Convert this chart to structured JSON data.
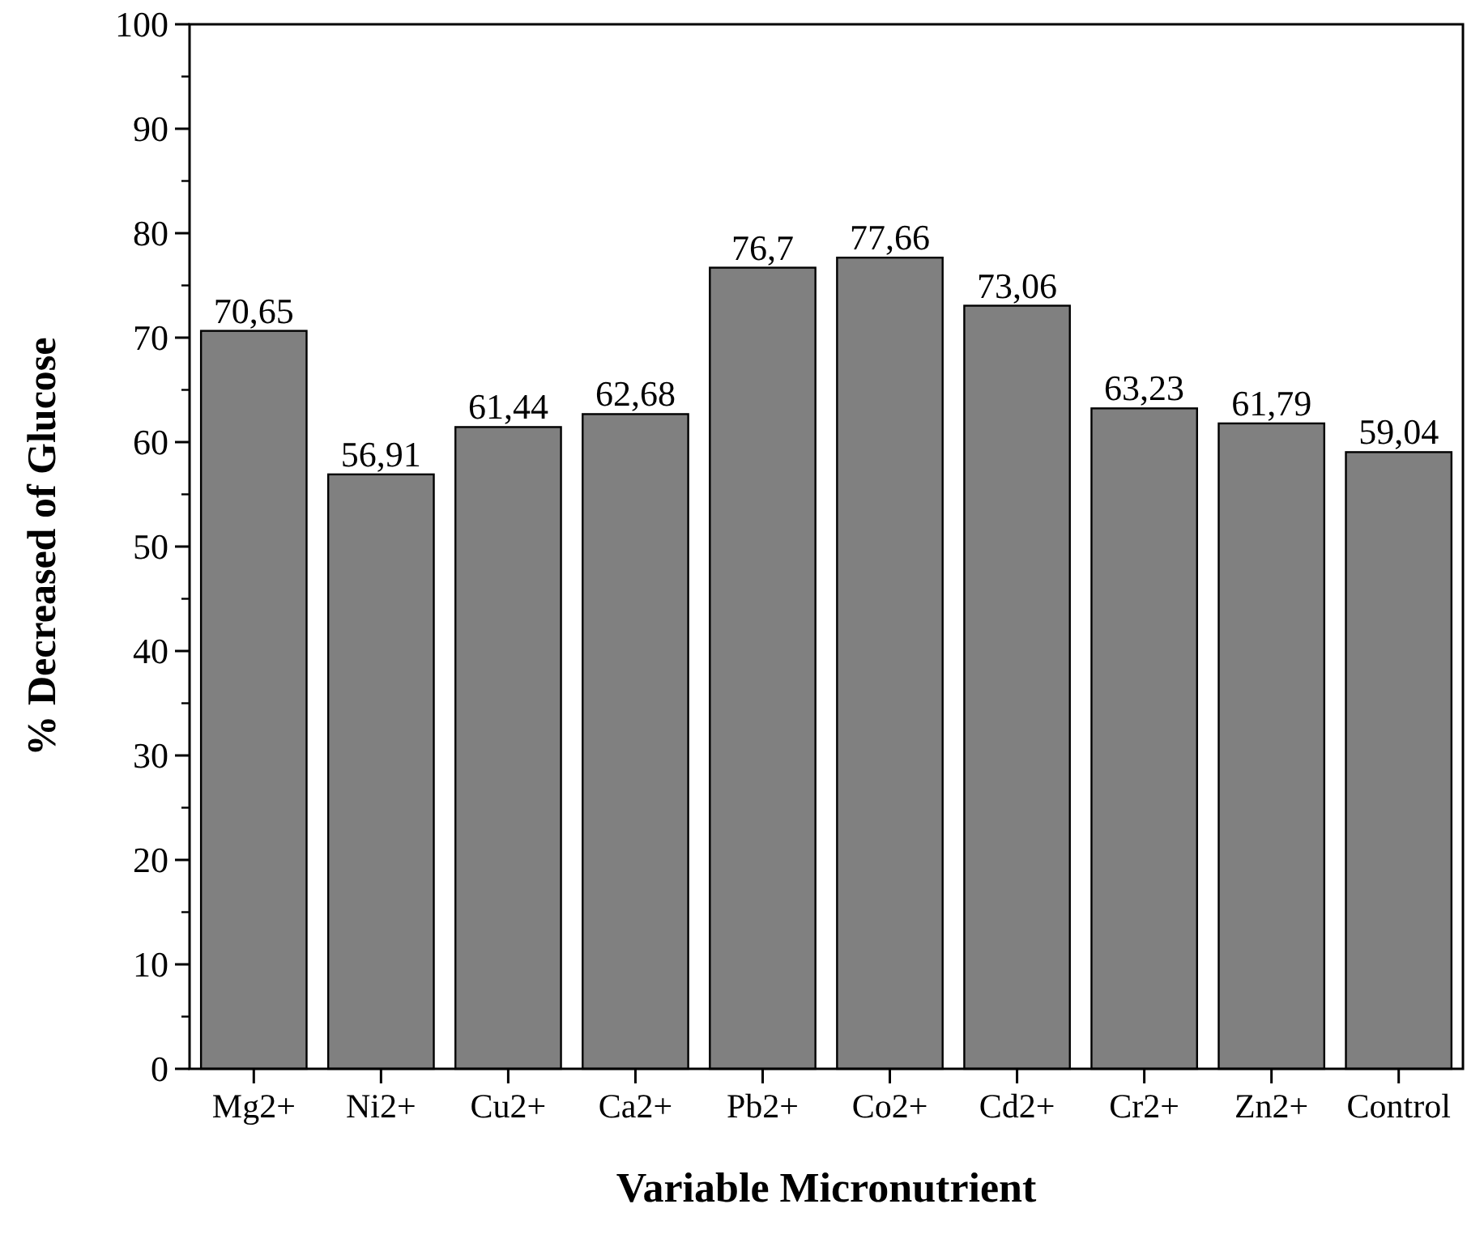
{
  "chart_data": {
    "type": "bar",
    "xlabel": "Variable Micronutrient",
    "ylabel": "% Decreased of Glucose",
    "categories": [
      "Mg2+",
      "Ni2+",
      "Cu2+",
      "Ca2+",
      "Pb2+",
      "Co2+",
      "Cd2+",
      "Cr2+",
      "Zn2+",
      "Control"
    ],
    "values": [
      70.65,
      56.91,
      61.44,
      62.68,
      76.7,
      77.66,
      73.06,
      63.23,
      61.79,
      59.04
    ],
    "value_labels": [
      "70,65",
      "56,91",
      "61,44",
      "62,68",
      "76,7",
      "77,66",
      "73,06",
      "63,23",
      "61,79",
      "59,04"
    ],
    "color": "#808080",
    "ylim": [
      0,
      100
    ],
    "yticks": [
      0,
      10,
      20,
      30,
      40,
      50,
      60,
      70,
      80,
      90,
      100
    ],
    "grid": false
  }
}
